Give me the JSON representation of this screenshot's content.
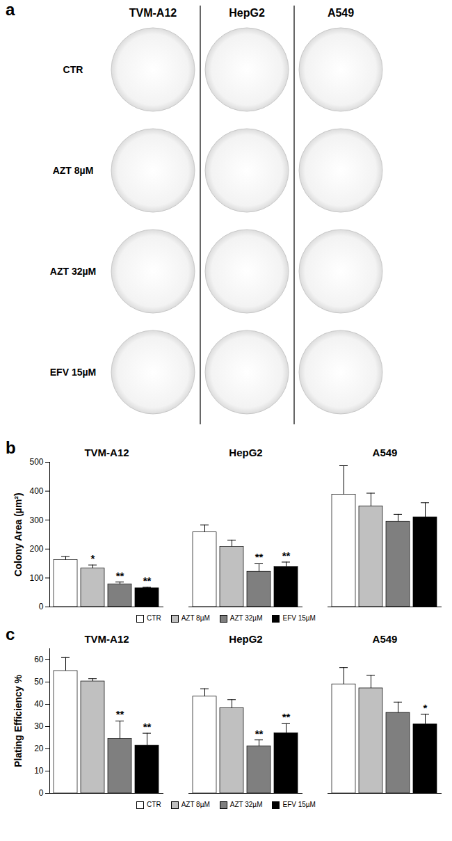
{
  "panel_a": {
    "panel_label": "a",
    "columns": [
      "TVM-A12",
      "HepG2",
      "A549"
    ],
    "rows": [
      "CTR",
      "AZT 8µM",
      "AZT 32µM",
      "EFV 15µM"
    ]
  },
  "chart_data": [
    {
      "type": "bar",
      "panel_label": "b",
      "y_label": "Colony Area (µm²)",
      "categories": [
        "TVM-A12",
        "HepG2",
        "A549"
      ],
      "series": [
        {
          "name": "CTR",
          "color": "#ffffff",
          "values": [
            162,
            258,
            388
          ],
          "errors": [
            12,
            25,
            100
          ],
          "significance": [
            null,
            null,
            null
          ]
        },
        {
          "name": "AZT 8µM",
          "color": "#c0c0c0",
          "values": [
            133,
            208,
            348
          ],
          "errors": [
            12,
            23,
            45
          ],
          "significance": [
            "*",
            null,
            null
          ]
        },
        {
          "name": "AZT 32µM",
          "color": "#7f7f7f",
          "values": [
            78,
            122,
            295
          ],
          "errors": [
            8,
            27,
            25
          ],
          "significance": [
            "**",
            "**",
            null
          ]
        },
        {
          "name": "EFV 15µM",
          "color": "#000000",
          "values": [
            65,
            138,
            310
          ],
          "errors": [
            3,
            17,
            50
          ],
          "significance": [
            "**",
            "**",
            null
          ]
        }
      ],
      "ylim": [
        0,
        500
      ],
      "yticks": [
        0,
        100,
        200,
        300,
        400,
        500
      ],
      "grid": false,
      "legend": "bottom"
    },
    {
      "type": "bar",
      "panel_label": "c",
      "y_label": "Plating Efficiency %",
      "categories": [
        "TVM-A12",
        "HepG2",
        "A549"
      ],
      "series": [
        {
          "name": "CTR",
          "color": "#ffffff",
          "values": [
            55,
            43.5,
            49
          ],
          "errors": [
            6,
            3.5,
            7.5
          ],
          "significance": [
            null,
            null,
            null
          ]
        },
        {
          "name": "AZT 8µM",
          "color": "#c0c0c0",
          "values": [
            50.3,
            38.3,
            47.2
          ],
          "errors": [
            1.2,
            3.8,
            5.8
          ],
          "significance": [
            null,
            null,
            null
          ]
        },
        {
          "name": "AZT 32µM",
          "color": "#7f7f7f",
          "values": [
            24.5,
            21.2,
            36.2
          ],
          "errors": [
            8,
            2.8,
            4.8
          ],
          "significance": [
            "**",
            "**",
            null
          ]
        },
        {
          "name": "EFV 15µM",
          "color": "#000000",
          "values": [
            21.5,
            27,
            31
          ],
          "errors": [
            5.5,
            4.3,
            4.5
          ],
          "significance": [
            "**",
            "**",
            "*"
          ]
        }
      ],
      "ylim": [
        0,
        65
      ],
      "yticks": [
        0,
        10,
        20,
        30,
        40,
        50,
        60
      ],
      "grid": false,
      "legend": "bottom"
    }
  ]
}
